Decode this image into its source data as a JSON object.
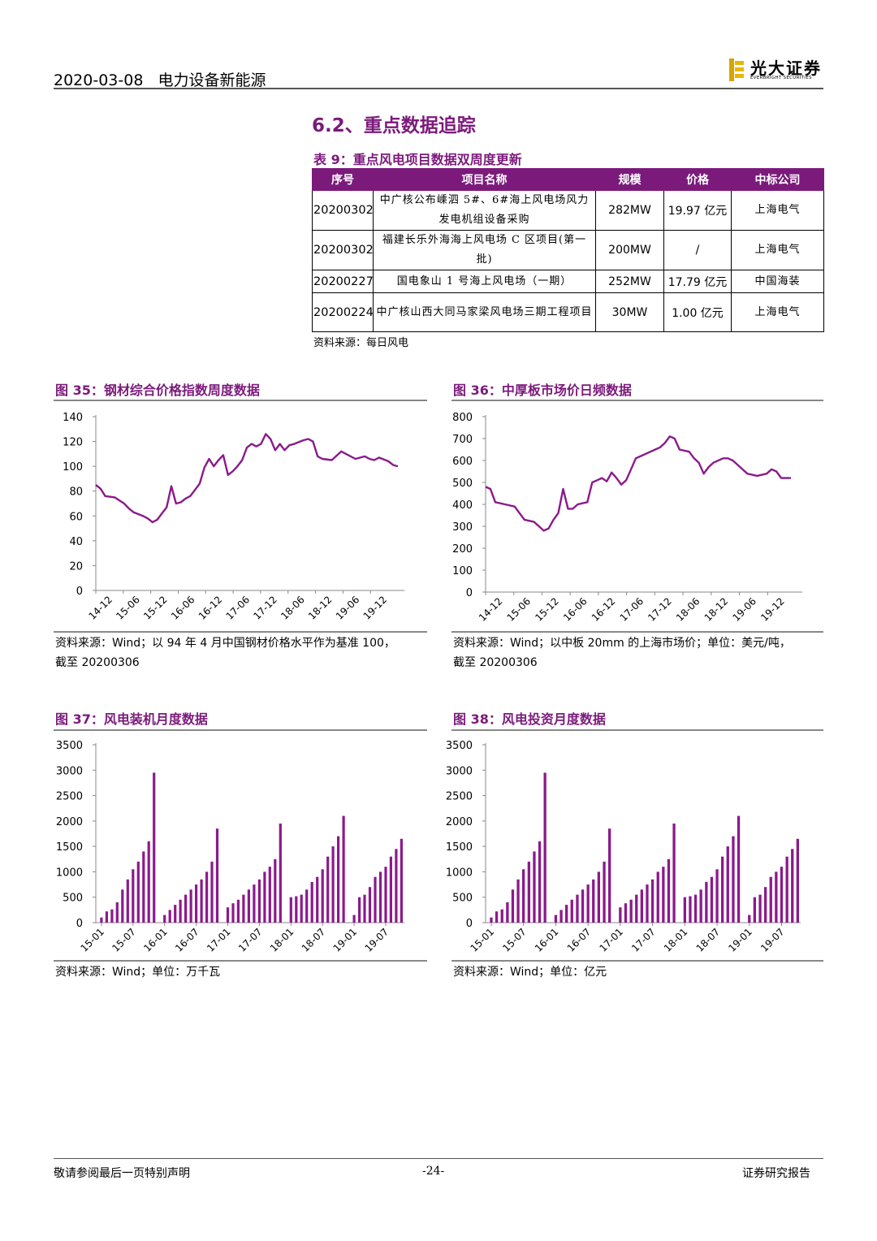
{
  "header": {
    "date": "2020-03-08",
    "category": "电力设备新能源",
    "brand_cn": "光大证券",
    "brand_en": "EVERBRIGHT SECURITIES"
  },
  "section_title": "6.2、重点数据追踪",
  "table": {
    "title": "表 9：重点风电项目数据双周度更新",
    "headers": [
      "序号",
      "项目名称",
      "规模",
      "价格",
      "中标公司"
    ],
    "rows": [
      {
        "id": "20200302",
        "name": "中广核公布嵊泗 5#、6#海上风电场风力发电机组设备采购",
        "scale": "282MW",
        "price": "19.97 亿元",
        "winner": "上海电气"
      },
      {
        "id": "20200302",
        "name": "福建长乐外海海上风电场 C 区项目(第一批)",
        "scale": "200MW",
        "price": "/",
        "winner": "上海电气"
      },
      {
        "id": "20200227",
        "name": "国电象山 1 号海上风电场（一期）",
        "scale": "252MW",
        "price": "17.79 亿元",
        "winner": "中国海装"
      },
      {
        "id": "20200224",
        "name": "中广核山西大同马家梁风电场三期工程项目",
        "scale": "30MW",
        "price": "1.00 亿元",
        "winner": "上海电气"
      }
    ],
    "source": "资料来源：每日风电"
  },
  "figures": {
    "f35": {
      "title": "图 35：钢材综合价格指数周度数据",
      "source_line1": "资料来源：Wind；以 94 年 4 月中国钢材价格水平作为基准 100，",
      "source_line2": "截至 20200306"
    },
    "f36": {
      "title": "图 36：中厚板市场价日频数据",
      "source_line1": "资料来源：Wind；以中板 20mm 的上海市场价；单位：美元/吨，",
      "source_line2": "截至 20200306"
    },
    "f37": {
      "title": "图 37：风电装机月度数据",
      "source": "资料来源：Wind；单位：万千瓦"
    },
    "f38": {
      "title": "图 38：风电投资月度数据",
      "source": "资料来源：Wind；单位：亿元"
    }
  },
  "chart_data": [
    {
      "id": "f35",
      "type": "line",
      "color": "#8b1a8b",
      "ylim": [
        0,
        140
      ],
      "yticks": [
        0,
        20,
        40,
        60,
        80,
        100,
        120,
        140
      ],
      "xticks": [
        "14-12",
        "15-06",
        "15-12",
        "16-06",
        "16-12",
        "17-06",
        "17-12",
        "18-06",
        "18-12",
        "19-06",
        "19-12"
      ],
      "x_range": [
        0,
        64
      ],
      "points": [
        [
          0,
          85
        ],
        [
          1,
          82
        ],
        [
          2,
          76
        ],
        [
          4,
          75
        ],
        [
          6,
          70
        ],
        [
          7,
          66
        ],
        [
          8,
          63
        ],
        [
          10,
          60
        ],
        [
          11,
          58
        ],
        [
          12,
          55
        ],
        [
          13,
          57
        ],
        [
          14,
          62
        ],
        [
          15,
          67
        ],
        [
          16,
          84
        ],
        [
          17,
          70
        ],
        [
          18,
          71
        ],
        [
          19,
          74
        ],
        [
          20,
          76
        ],
        [
          22,
          86
        ],
        [
          23,
          99
        ],
        [
          24,
          106
        ],
        [
          25,
          100
        ],
        [
          26,
          105
        ],
        [
          27,
          109
        ],
        [
          28,
          93
        ],
        [
          29,
          96
        ],
        [
          30,
          100
        ],
        [
          31,
          105
        ],
        [
          32,
          115
        ],
        [
          33,
          118
        ],
        [
          34,
          116
        ],
        [
          35,
          118
        ],
        [
          36,
          126
        ],
        [
          37,
          122
        ],
        [
          38,
          113
        ],
        [
          39,
          118
        ],
        [
          40,
          113
        ],
        [
          41,
          117
        ],
        [
          42,
          118
        ],
        [
          44,
          121
        ],
        [
          45,
          122
        ],
        [
          46,
          120
        ],
        [
          47,
          108
        ],
        [
          48,
          106
        ],
        [
          50,
          105
        ],
        [
          52,
          112
        ],
        [
          53,
          110
        ],
        [
          55,
          106
        ],
        [
          57,
          108
        ],
        [
          58,
          106
        ],
        [
          59,
          105
        ],
        [
          60,
          107
        ],
        [
          62,
          104
        ],
        [
          63,
          101
        ],
        [
          64,
          100
        ]
      ]
    },
    {
      "id": "f36",
      "type": "line",
      "color": "#8b1a8b",
      "ylim": [
        0,
        800
      ],
      "yticks": [
        0,
        100,
        200,
        300,
        400,
        500,
        600,
        700,
        800
      ],
      "xticks": [
        "14-12",
        "15-06",
        "15-12",
        "16-06",
        "16-12",
        "17-06",
        "17-12",
        "18-06",
        "18-12",
        "19-06",
        "19-12"
      ],
      "x_range": [
        0,
        64
      ],
      "points": [
        [
          0,
          480
        ],
        [
          1,
          470
        ],
        [
          2,
          410
        ],
        [
          4,
          400
        ],
        [
          6,
          390
        ],
        [
          7,
          360
        ],
        [
          8,
          330
        ],
        [
          10,
          320
        ],
        [
          11,
          300
        ],
        [
          12,
          280
        ],
        [
          13,
          290
        ],
        [
          14,
          330
        ],
        [
          15,
          360
        ],
        [
          16,
          470
        ],
        [
          17,
          380
        ],
        [
          18,
          380
        ],
        [
          19,
          400
        ],
        [
          21,
          410
        ],
        [
          22,
          500
        ],
        [
          23,
          510
        ],
        [
          24,
          520
        ],
        [
          25,
          505
        ],
        [
          26,
          545
        ],
        [
          27,
          520
        ],
        [
          28,
          490
        ],
        [
          29,
          510
        ],
        [
          30,
          560
        ],
        [
          31,
          610
        ],
        [
          32,
          620
        ],
        [
          34,
          640
        ],
        [
          35,
          650
        ],
        [
          36,
          660
        ],
        [
          37,
          680
        ],
        [
          38,
          710
        ],
        [
          39,
          700
        ],
        [
          40,
          650
        ],
        [
          42,
          640
        ],
        [
          43,
          610
        ],
        [
          44,
          590
        ],
        [
          45,
          540
        ],
        [
          46,
          570
        ],
        [
          47,
          590
        ],
        [
          49,
          610
        ],
        [
          50,
          610
        ],
        [
          51,
          600
        ],
        [
          52,
          580
        ],
        [
          53,
          560
        ],
        [
          54,
          540
        ],
        [
          56,
          530
        ],
        [
          58,
          540
        ],
        [
          59,
          560
        ],
        [
          60,
          550
        ],
        [
          61,
          520
        ],
        [
          62,
          520
        ],
        [
          63,
          520
        ]
      ]
    },
    {
      "id": "f37",
      "type": "bar",
      "color": "#8b1a8b",
      "ylim": [
        0,
        3500
      ],
      "yticks": [
        0,
        500,
        1000,
        1500,
        2000,
        2500,
        3000,
        3500
      ],
      "xticks": [
        "15-01",
        "15-07",
        "16-01",
        "16-07",
        "17-01",
        "17-07",
        "18-01",
        "18-07",
        "19-01",
        "19-07"
      ],
      "values": [
        100,
        220,
        260,
        400,
        650,
        850,
        1050,
        1200,
        1400,
        1600,
        2950,
        0,
        150,
        250,
        350,
        450,
        550,
        650,
        750,
        850,
        1000,
        1200,
        1850,
        0,
        300,
        380,
        450,
        550,
        650,
        750,
        850,
        1000,
        1100,
        1250,
        1950,
        0,
        500,
        520,
        550,
        650,
        800,
        900,
        1050,
        1300,
        1500,
        1700,
        2100,
        0,
        150,
        500,
        550,
        700,
        900,
        1000,
        1100,
        1300,
        1450,
        1650
      ]
    },
    {
      "id": "f38",
      "type": "bar",
      "color": "#8b1a8b",
      "ylim": [
        0,
        3500
      ],
      "yticks": [
        0,
        500,
        1000,
        1500,
        2000,
        2500,
        3000,
        3500
      ],
      "xticks": [
        "15-01",
        "15-07",
        "16-01",
        "16-07",
        "17-01",
        "17-07",
        "18-01",
        "18-07",
        "19-01",
        "19-07"
      ],
      "values": [
        100,
        220,
        260,
        400,
        650,
        850,
        1050,
        1200,
        1400,
        1600,
        2950,
        0,
        150,
        250,
        350,
        450,
        550,
        650,
        750,
        850,
        1000,
        1200,
        1850,
        0,
        300,
        380,
        450,
        550,
        650,
        750,
        850,
        1000,
        1100,
        1250,
        1950,
        0,
        500,
        520,
        550,
        650,
        800,
        900,
        1050,
        1300,
        1500,
        1700,
        2100,
        0,
        150,
        500,
        550,
        700,
        900,
        1000,
        1100,
        1300,
        1450,
        1650
      ]
    }
  ],
  "footer": {
    "left": "敬请参阅最后一页特别声明",
    "page": "-24-",
    "right": "证券研究报告"
  }
}
